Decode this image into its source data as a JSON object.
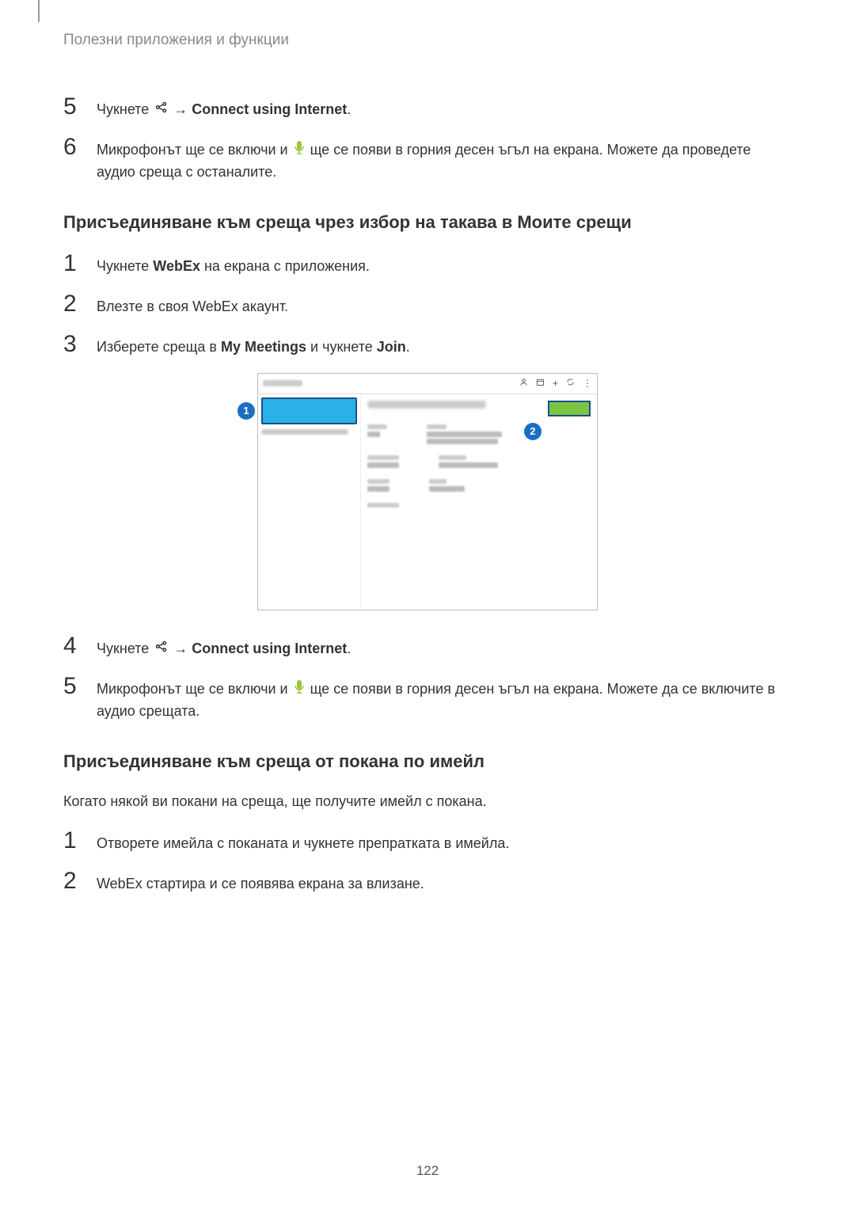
{
  "header": "Полезни приложения и функции",
  "pageNumber": "122",
  "steps_top": [
    {
      "num": "5",
      "parts": [
        "Чукнете ",
        "{share}",
        " → ",
        "{bold:Connect using Internet}",
        "."
      ]
    },
    {
      "num": "6",
      "parts": [
        "Микрофонът ще се включи и ",
        "{mic}",
        " ще се появи в горния десен ъгъл на екрана. Можете да проведете аудио среща с останалите."
      ]
    }
  ],
  "section1_title": "Присъединяване към среща чрез избор на такава в Моите срещи",
  "steps_s1a": [
    {
      "num": "1",
      "parts": [
        "Чукнете ",
        "{bold:WebEx}",
        " на екрана с приложения."
      ]
    },
    {
      "num": "2",
      "parts": [
        "Влезте в своя WebEx акаунт."
      ]
    },
    {
      "num": "3",
      "parts": [
        "Изберете среща в ",
        "{bold:My Meetings}",
        " и чукнете ",
        "{bold:Join}",
        "."
      ]
    }
  ],
  "screenshot": {
    "callouts": [
      "1",
      "2"
    ],
    "top_icons": [
      "person",
      "calendar",
      "plus",
      "refresh",
      "more"
    ],
    "join_color": "#7cc443",
    "selected_color": "#2bb1e6",
    "callout_color": "#1b6ec2"
  },
  "steps_s1b": [
    {
      "num": "4",
      "parts": [
        "Чукнете ",
        "{share}",
        " → ",
        "{bold:Connect using Internet}",
        "."
      ]
    },
    {
      "num": "5",
      "parts": [
        "Микрофонът ще се включи и ",
        "{mic}",
        " ще се появи в горния десен ъгъл на екрана. Можете да се включите в аудио срещата."
      ]
    }
  ],
  "section2_title": "Присъединяване към среща от покана по имейл",
  "section2_para": "Когато някой ви покани на среща, ще получите имейл с покана.",
  "steps_s2": [
    {
      "num": "1",
      "parts": [
        "Отворете имейла с поканата и чукнете препратката в имейла."
      ]
    },
    {
      "num": "2",
      "parts": [
        "WebEx стартира и се появява екрана за влизане."
      ]
    }
  ]
}
